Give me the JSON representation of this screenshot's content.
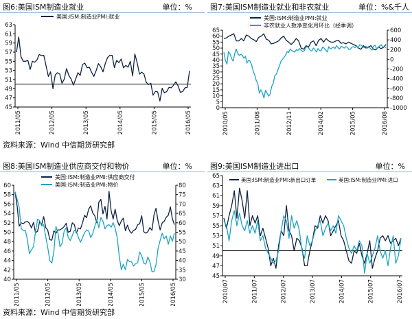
{
  "panels": [
    {
      "title": "图6:美国ISM制造业就业",
      "unit": "单位：%",
      "source": "资料来源：Wind  中信期货研究部",
      "chart_data": {
        "type": "line",
        "x_ticks": [
          "2011/05",
          "2012/05",
          "2013/05",
          "2014/05",
          "2015/05",
          "2016/05"
        ],
        "ylim": [
          45,
          63
        ],
        "yticks": [
          45,
          47,
          49,
          51,
          53,
          55,
          57,
          59,
          61,
          63
        ],
        "reference_line": 50,
        "legend_position": "top-center",
        "series": [
          {
            "name": "美国:ISM:制造业PMI:就业",
            "color": "#0d2240",
            "axis": "left",
            "values": [
              57.0,
              60.3,
              56.0,
              55.0,
              55.0,
              55.2,
              53.2,
              55.0,
              54.8,
              55.3,
              56.5,
              56.2,
              56.3,
              54.0,
              51.7,
              52.7,
              49.0,
              52.0,
              52.5,
              52.2,
              50.2,
              51.1,
              53.4,
              51.9,
              51.1,
              49.8,
              51.1,
              52.5,
              51.9,
              54.3,
              54.6,
              53.6,
              53.7,
              52.6,
              51.7,
              53.0,
              54.5,
              53.8,
              52.7,
              54.5,
              55.8,
              56.3,
              56.3,
              53.6,
              55.2,
              54.7,
              55.5,
              53.6,
              54.1,
              53.7,
              55.0,
              51.8,
              56.6,
              54.7,
              52.2,
              52.6,
              52.2,
              50.4,
              49.9,
              50.2,
              47.6,
              48.4,
              48.3,
              46.3,
              49.1,
              48.1,
              48.4,
              49.3,
              49.2,
              49.8,
              50.5,
              49.6,
              48.2,
              48.4,
              49.2,
              49.3,
              52.9
            ]
          }
        ]
      }
    },
    {
      "title": "图7:美国ISM制造业就业和非农就业",
      "unit": "单位：%&千人",
      "source": "",
      "chart_data": {
        "type": "line",
        "x_ticks": [
          "2010/05",
          "2011/08",
          "2012/11",
          "2014/02",
          "2015/05",
          "2016/08"
        ],
        "ylim": [
          0,
          65
        ],
        "yticks": [
          0,
          5,
          10,
          15,
          20,
          25,
          30,
          35,
          40,
          45,
          50,
          55,
          60,
          65
        ],
        "y2lim": [
          -1000,
          600
        ],
        "y2ticks": [
          -1000,
          -800,
          -600,
          -400,
          -200,
          0,
          200,
          400,
          600
        ],
        "legend_position": "top-center",
        "series": [
          {
            "name": "美国:ISM:制造业PMI:就业",
            "color": "#0d2240",
            "axis": "left",
            "values": [
              58.0,
              58.5,
              60.0,
              61.0,
              62.0,
              56.0,
              56.0,
              58.0,
              56.0,
              61.0,
              60.0,
              58.0,
              57.0,
              55.5,
              59.0,
              60.0,
              62.0,
              57.5,
              56.5,
              53.5,
              54.0,
              55.0,
              56.0,
              58.5,
              60.0,
              56.5,
              55.0,
              53.0,
              55.0,
              58.0,
              56.0,
              50.0,
              49.0,
              52.0,
              51.0,
              55.0,
              56.0,
              52.0,
              56.5,
              58.0,
              55.0,
              58.0,
              56.0,
              55.0,
              55.0,
              56.0,
              56.5,
              54.0,
              54.5,
              53.5,
              55.0,
              54.0,
              53.0,
              52.0,
              50.0,
              49.0,
              52.0,
              50.0,
              51.0,
              52.0,
              49.0,
              48.5,
              51.0,
              49.5,
              50.5,
              53.0
            ]
          },
          {
            "name": "非农就业人数净变化月环比（经季调）",
            "color": "#1ca3c5",
            "axis": "right",
            "values": [
              150,
              -20,
              -100,
              160,
              110,
              20,
              -40,
              110,
              210,
              120,
              80,
              100,
              80,
              20,
              60,
              -80,
              -20,
              -40,
              -120,
              -240,
              -330,
              -440,
              -500,
              -700,
              -630,
              -700,
              -800,
              -640,
              -700,
              -760,
              -720,
              -560,
              -500,
              -340,
              -310,
              -220,
              -140,
              -40,
              0,
              40,
              80,
              160,
              140,
              210,
              180,
              160,
              150,
              200,
              180,
              220,
              190,
              160,
              170,
              240,
              260,
              230,
              180,
              170,
              230,
              200,
              150,
              220,
              180,
              170,
              250,
              230,
              190,
              150,
              260,
              210,
              230,
              250,
              220,
              280,
              240,
              210,
              270,
              250,
              230,
              260,
              250,
              200,
              210,
              250,
              260,
              240,
              280,
              230,
              300,
              290,
              260,
              240,
              270,
              230,
              250,
              220,
              190,
              270,
              290,
              210,
              240,
              280,
              300,
              250,
              260,
              240
            ]
          }
        ]
      }
    },
    {
      "title": "图8:美国ISM制造业供应商交付和物价",
      "unit": "单位：%",
      "source": "资料来源：Wind  中信期货研究部",
      "chart_data": {
        "type": "line",
        "x_ticks": [
          "2011/05",
          "2012/05",
          "2013/05",
          "2014/05",
          "2015/05",
          "2016/05"
        ],
        "ylim": [
          40,
          60
        ],
        "yticks": [
          40,
          42,
          44,
          46,
          48,
          50,
          52,
          54,
          56,
          58,
          60
        ],
        "y2lim": [
          30,
          80
        ],
        "y2ticks": [
          30,
          35,
          40,
          45,
          50,
          55,
          60,
          65,
          70,
          75,
          80
        ],
        "legend_position": "top-center",
        "series": [
          {
            "name": "美国:ISM:制造业PMI:供应商交付",
            "color": "#0d2240",
            "axis": "left",
            "values": [
              58.5,
              55.5,
              51.3,
              52.0,
              51.8,
              52.2,
              52.3,
              51.9,
              50.9,
              52.1,
              49.9,
              50.2,
              52.3,
              51.6,
              53.3,
              51.0,
              50.4,
              48.4,
              48.3,
              50.3,
              49.8,
              50.5,
              50.5,
              50.8,
              51.2,
              51.9,
              50.0,
              50.2,
              52.0,
              51.6,
              49.8,
              50.9,
              50.7,
              52.0,
              53.6,
              53.1,
              54.9,
              55.6,
              54.1,
              53.5,
              52.0,
              56.4,
              57.0,
              53.9,
              55.5,
              52.8,
              58.7,
              54.6,
              52.8,
              54.9,
              52.5,
              51.4,
              52.4,
              53.0,
              50.3,
              51.5,
              50.3,
              49.8,
              50.4,
              50.6,
              51.6,
              51.8,
              53.5,
              50.1,
              49.8,
              50.1,
              51.0,
              50.4,
              53.7,
              55.1,
              52.4,
              50.5,
              52.0,
              52.3,
              53.2,
              53.6,
              55.4,
              52.9,
              51.6
            ]
          },
          {
            "name": "美国:ISM:制造业PMI:物价",
            "color": "#1ca3c5",
            "axis": "right",
            "values": [
              76.5,
              72.3,
              68.2,
              56.9,
              55.9,
              56.0,
              51.3,
              43.6,
              45.6,
              47.4,
              55.3,
              61.9,
              61.2,
              58.3,
              59.1,
              52.6,
              46.7,
              39.8,
              38.6,
              44.8,
              58.1,
              54.3,
              47.3,
              49.1,
              55.6,
              57.4,
              52.3,
              50.6,
              53.2,
              56.1,
              55.6,
              52.2,
              49.7,
              52.1,
              54.7,
              56.2,
              55.7,
              52.2,
              54.2,
              58.1,
              61.8,
              57.4,
              62.8,
              60.9,
              56.8,
              58.5,
              59.0,
              57.6,
              60.1,
              57.1,
              52.2,
              42.1,
              35.0,
              38.0,
              35.0,
              40.5,
              39.3,
              39.3,
              37.0,
              38.3,
              38.7,
              44.5,
              42.5,
              38.5,
              38.0,
              41.8,
              39.2,
              34.0,
              34.1,
              37.8,
              46.4,
              50.6,
              54.5,
              51.5,
              53.0,
              48.6,
              53.0,
              50.2,
              54.5
            ]
          }
        ]
      }
    },
    {
      "title": "图9:美国ISM制造业进出口",
      "unit": "单位：%",
      "source": "",
      "chart_data": {
        "type": "line",
        "x_ticks": [
          "2010/07",
          "2011/07",
          "2012/07",
          "2013/07",
          "2014/07",
          "2015/07",
          "2016/07"
        ],
        "ylim": [
          45,
          65
        ],
        "yticks": [
          45,
          47,
          49,
          51,
          53,
          55,
          57,
          59,
          61,
          63,
          65
        ],
        "reference_line": 50,
        "legend_position": "top-center",
        "series": [
          {
            "name": "美国:ISM:制造业PMI:新出口订单",
            "color": "#0d2240",
            "axis": "left",
            "values": [
              56.5,
              54.5,
              57.0,
              59.0,
              62.0,
              56.5,
              62.5,
              60.0,
              56.5,
              62.0,
              55.0,
              57.0,
              55.5,
              57.0,
              53.0,
              54.5,
              52.5,
              50.5,
              47.0,
              48.5,
              46.5,
              51.0,
              54.0,
              53.0,
              59.0,
              54.0,
              53.0,
              50.0,
              52.5,
              52.0,
              50.5,
              47.0,
              47.0,
              50.0,
              52.0,
              55.0,
              54.5,
              57.0,
              55.5,
              57.0,
              56.0,
              53.0,
              54.0,
              55.0,
              56.0,
              53.0,
              52.0,
              50.0,
              48.0,
              47.5,
              50.0,
              49.5,
              51.5,
              49.0,
              47.5,
              49.5,
              52.0,
              46.5,
              48.5,
              50.0,
              52.5,
              53.0,
              52.0,
              53.0,
              51.5,
              52.0,
              52.5,
              51.0,
              52.5
            ]
          },
          {
            "name": "美国:ISM:制造业PMI:进口",
            "color": "#1ca3c5",
            "axis": "left",
            "values": [
              56.0,
              55.0,
              52.0,
              56.0,
              58.0,
              55.0,
              57.5,
              55.0,
              54.0,
              56.0,
              53.5,
              55.0,
              53.5,
              56.0,
              52.0,
              53.0,
              50.5,
              49.5,
              48.5,
              47.5,
              48.0,
              50.0,
              54.0,
              57.0,
              56.0,
              52.5,
              57.0,
              54.5,
              56.0,
              54.0,
              50.0,
              48.5,
              53.0,
              51.0,
              52.0,
              54.0,
              55.0,
              56.0,
              53.0,
              54.5,
              55.5,
              54.0,
              55.0,
              53.5,
              57.0,
              56.0,
              55.0,
              52.5,
              50.5,
              49.5,
              51.0,
              50.0,
              52.0,
              51.0,
              45.5,
              49.5,
              47.5,
              49.0,
              50.5,
              53.0,
              50.0,
              48.5,
              50.0,
              47.0,
              50.5,
              53.0,
              47.5,
              49.0,
              52.5
            ]
          }
        ]
      }
    }
  ]
}
